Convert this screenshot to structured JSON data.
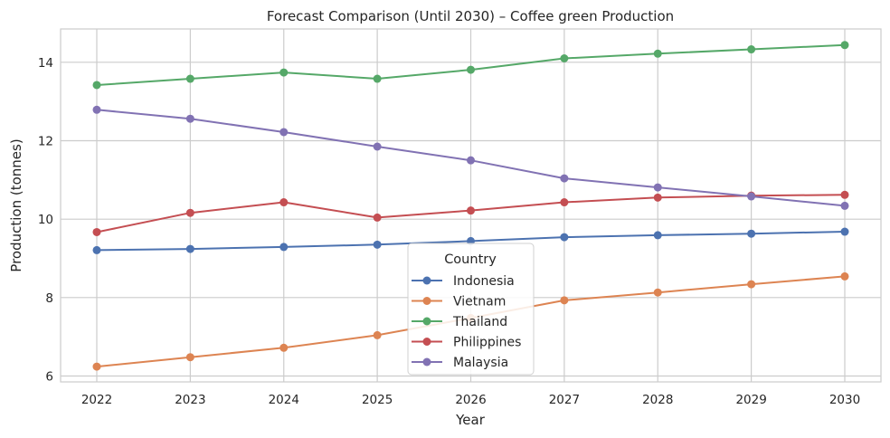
{
  "chart_data": {
    "type": "line",
    "title": "Forecast Comparison (Until 2030) – Coffee green Production",
    "xlabel": "Year",
    "ylabel": "Production (tonnes)",
    "x": [
      "2022",
      "2023",
      "2024",
      "2025",
      "2026",
      "2027",
      "2028",
      "2029",
      "2030"
    ],
    "yticks": [
      "6",
      "8",
      "10",
      "12",
      "14"
    ],
    "ylim": [
      5.85,
      14.85
    ],
    "grid": true,
    "legend": {
      "title": "Country",
      "placement": "bottom-center"
    },
    "series": [
      {
        "name": "Indonesia",
        "color": "#4c72b0",
        "values": [
          9.21,
          9.24,
          9.29,
          9.35,
          9.44,
          9.54,
          9.59,
          9.63,
          9.68
        ]
      },
      {
        "name": "Vietnam",
        "color": "#dd8452",
        "values": [
          6.24,
          6.48,
          6.72,
          7.04,
          7.48,
          7.93,
          8.13,
          8.34,
          8.54
        ]
      },
      {
        "name": "Thailand",
        "color": "#55a868",
        "values": [
          13.42,
          13.58,
          13.74,
          13.58,
          13.81,
          14.1,
          14.22,
          14.33,
          14.44
        ]
      },
      {
        "name": "Philippines",
        "color": "#c44e52",
        "values": [
          9.67,
          10.16,
          10.43,
          10.04,
          10.22,
          10.43,
          10.55,
          10.6,
          10.62
        ]
      },
      {
        "name": "Malaysia",
        "color": "#8172b3",
        "values": [
          12.79,
          12.56,
          12.22,
          11.85,
          11.5,
          11.04,
          10.81,
          10.58,
          10.34
        ]
      }
    ]
  }
}
